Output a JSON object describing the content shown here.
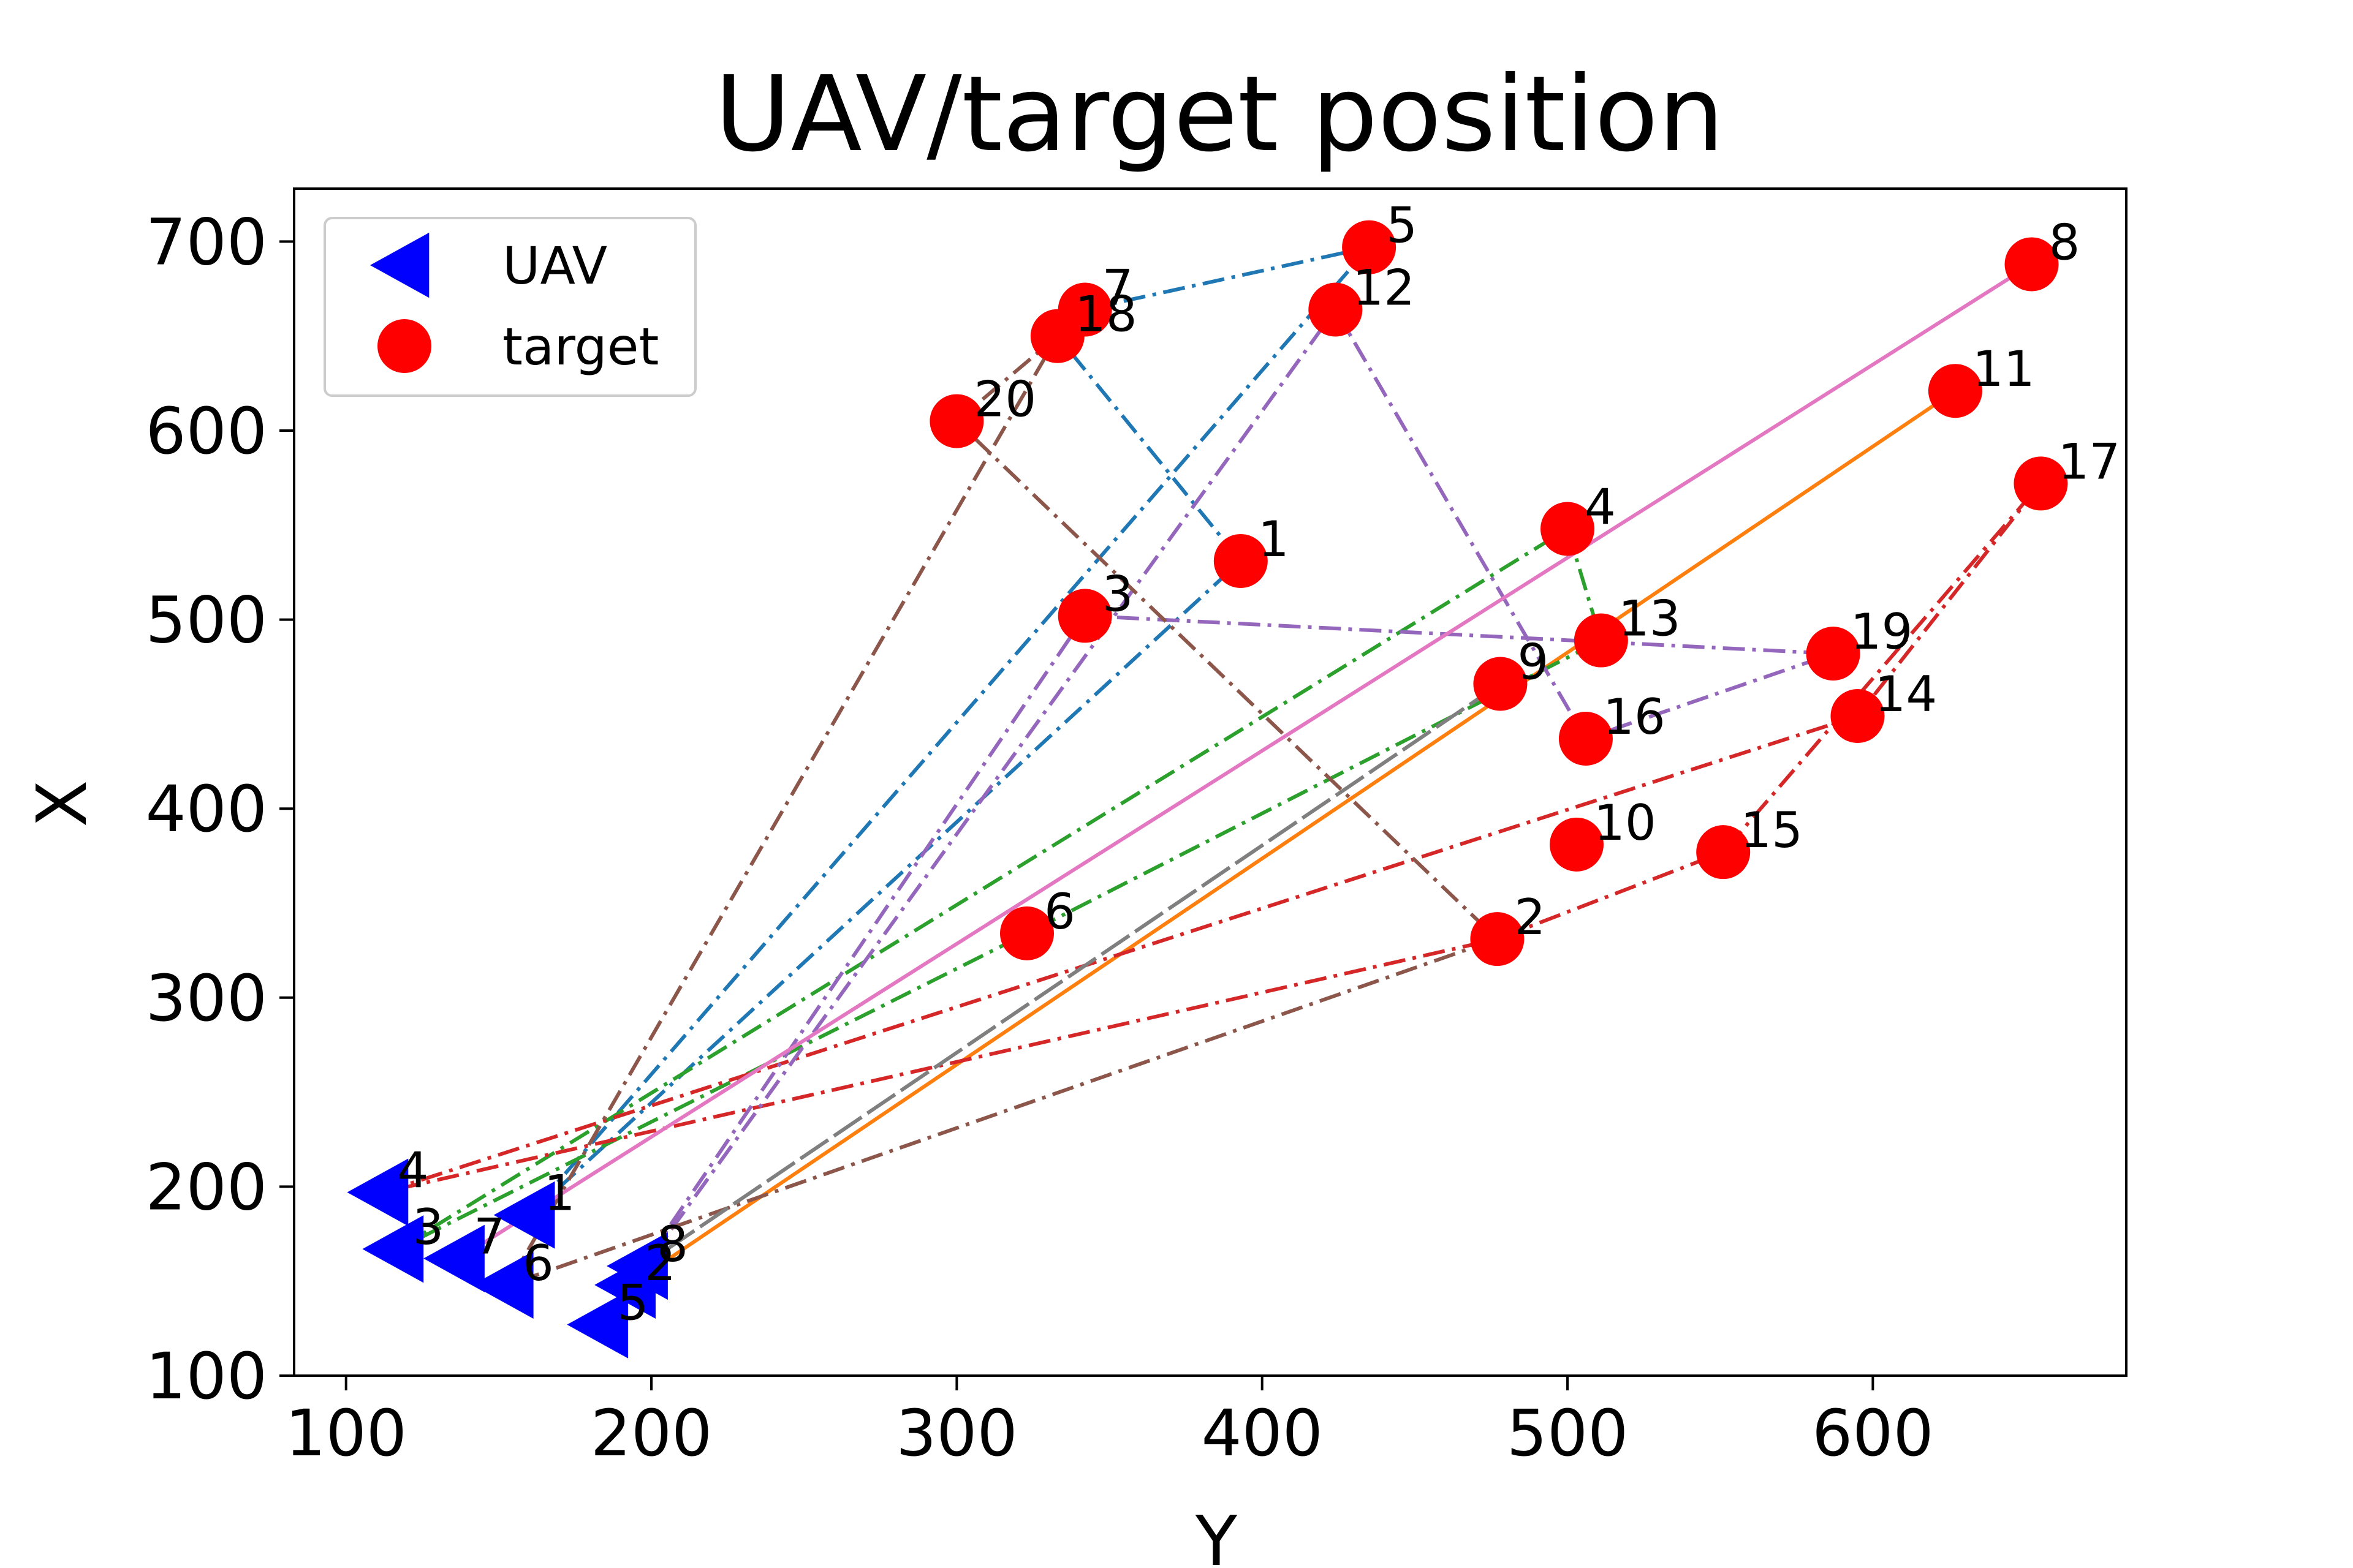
{
  "chart_data": {
    "type": "scatter",
    "title": "UAV/target position",
    "xlabel": "Y",
    "ylabel": "X",
    "xlim": [
      83,
      683
    ],
    "ylim": [
      100,
      728
    ],
    "xticks": [
      100,
      200,
      300,
      400,
      500,
      600
    ],
    "yticks": [
      100,
      200,
      300,
      400,
      500,
      600,
      700
    ],
    "grid": false,
    "legend": {
      "placement": "top-left",
      "entries": [
        {
          "label": "UAV",
          "marker": "triangle-left",
          "color": "#0000ff"
        },
        {
          "label": "target",
          "marker": "circle",
          "color": "#ff0000"
        }
      ]
    },
    "series": [
      {
        "name": "UAV",
        "color": "#0000ff",
        "points": [
          {
            "label": "1",
            "x": 160,
            "y": 185
          },
          {
            "label": "2",
            "x": 193,
            "y": 148
          },
          {
            "label": "3",
            "x": 117,
            "y": 167
          },
          {
            "label": "4",
            "x": 112,
            "y": 197
          },
          {
            "label": "5",
            "x": 184,
            "y": 127
          },
          {
            "label": "6",
            "x": 153,
            "y": 148
          },
          {
            "label": "7",
            "x": 137,
            "y": 162
          },
          {
            "label": "8",
            "x": 197,
            "y": 158
          }
        ]
      },
      {
        "name": "target",
        "color": "#ff0000",
        "points": [
          {
            "label": "1",
            "x": 393,
            "y": 531
          },
          {
            "label": "2",
            "x": 477,
            "y": 331
          },
          {
            "label": "3",
            "x": 342,
            "y": 502
          },
          {
            "label": "4",
            "x": 500,
            "y": 548
          },
          {
            "label": "5",
            "x": 435,
            "y": 697
          },
          {
            "label": "6",
            "x": 323,
            "y": 334
          },
          {
            "label": "7",
            "x": 342,
            "y": 664
          },
          {
            "label": "8",
            "x": 652,
            "y": 688
          },
          {
            "label": "9",
            "x": 478,
            "y": 466
          },
          {
            "label": "10",
            "x": 503,
            "y": 381
          },
          {
            "label": "11",
            "x": 627,
            "y": 621
          },
          {
            "label": "12",
            "x": 424,
            "y": 664
          },
          {
            "label": "13",
            "x": 511,
            "y": 489
          },
          {
            "label": "14",
            "x": 595,
            "y": 449
          },
          {
            "label": "15",
            "x": 551,
            "y": 377
          },
          {
            "label": "16",
            "x": 506,
            "y": 437
          },
          {
            "label": "17",
            "x": 655,
            "y": 572
          },
          {
            "label": "18",
            "x": 333,
            "y": 650
          },
          {
            "label": "19",
            "x": 587,
            "y": 482
          },
          {
            "label": "20",
            "x": 300,
            "y": 605
          }
        ]
      }
    ],
    "routes": [
      {
        "uav": "1",
        "color": "#1f77b4",
        "path": [
          [
            160,
            185
          ],
          [
            393,
            531
          ],
          [
            333,
            650
          ],
          [
            342,
            664
          ],
          [
            435,
            697
          ],
          [
            160,
            185
          ]
        ]
      },
      {
        "uav": "2",
        "color": "#ff7f0e",
        "path": [
          [
            193,
            148
          ],
          [
            627,
            621
          ],
          [
            193,
            148
          ]
        ]
      },
      {
        "uav": "3",
        "color": "#2ca02c",
        "path": [
          [
            117,
            167
          ],
          [
            500,
            548
          ],
          [
            511,
            489
          ],
          [
            323,
            334
          ],
          [
            117,
            167
          ]
        ]
      },
      {
        "uav": "4",
        "color": "#d62728",
        "path": [
          [
            112,
            197
          ],
          [
            595,
            449
          ],
          [
            655,
            572
          ],
          [
            551,
            377
          ],
          [
            477,
            331
          ],
          [
            112,
            197
          ]
        ]
      },
      {
        "uav": "5",
        "color": "#9467bd",
        "path": [
          [
            184,
            127
          ],
          [
            342,
            502
          ],
          [
            587,
            482
          ],
          [
            506,
            437
          ],
          [
            424,
            664
          ],
          [
            184,
            127
          ]
        ]
      },
      {
        "uav": "6",
        "color": "#8c564b",
        "path": [
          [
            153,
            148
          ],
          [
            333,
            650
          ],
          [
            300,
            605
          ],
          [
            477,
            331
          ],
          [
            153,
            148
          ]
        ]
      },
      {
        "uav": "7",
        "color": "#e377c2",
        "path": [
          [
            137,
            162
          ],
          [
            652,
            688
          ],
          [
            137,
            162
          ]
        ]
      },
      {
        "uav": "8",
        "color": "#7f7f7f",
        "path": [
          [
            197,
            158
          ],
          [
            478,
            466
          ],
          [
            197,
            158
          ]
        ]
      }
    ]
  }
}
